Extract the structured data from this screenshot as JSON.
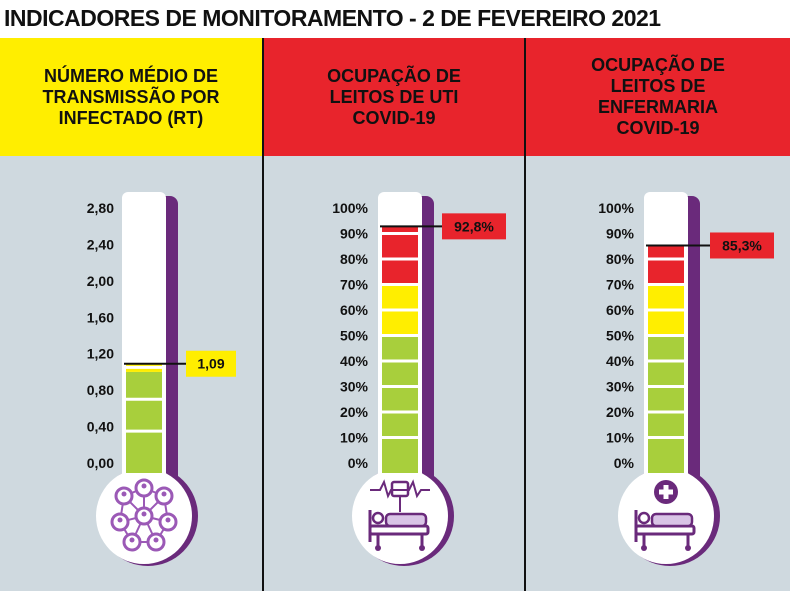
{
  "title": "INDICADORES DE MONITORAMENTO - 2 DE FEVEREIRO 2021",
  "colors": {
    "panel_bg": "#cfd9df",
    "header_yellow": "#ffee00",
    "header_red": "#e8242c",
    "green": "#a8cf3c",
    "yellow": "#ffee00",
    "red": "#e8242c",
    "purple": "#6a2a7b",
    "icon_purple": "#9b59b6"
  },
  "panels": [
    {
      "title": "NÚMERO MÉDIO DE\nTRANSMISSÃO POR\nINFECTADO (RT)",
      "header_color": "#ffee00",
      "icon": "people-network-icon",
      "value_label": "1,09"
    },
    {
      "title": "OCUPAÇÃO DE\nLEITOS DE UTI\nCOVID-19",
      "header_color": "#e8242c",
      "icon": "icu-bed-monitor-icon",
      "value_label": "92,8%"
    },
    {
      "title": "OCUPAÇÃO DE\nLEITOS DE\nENFERMARIA\nCOVID-19",
      "header_color": "#e8242c",
      "icon": "ward-bed-cross-icon",
      "value_label": "85,3%"
    }
  ],
  "chart_data": [
    {
      "type": "gauge",
      "title": "NÚMERO MÉDIO DE TRANSMISSÃO POR INFECTADO (RT)",
      "tick_labels": [
        "2,80",
        "2,40",
        "2,00",
        "1,60",
        "1,20",
        "0,80",
        "0,40",
        "0,00"
      ],
      "ylim": [
        0,
        2.8
      ],
      "value": 1.09,
      "value_label": "1,09",
      "color_zones": [
        {
          "from": 0,
          "to": 1.0,
          "color": "#a8cf3c"
        },
        {
          "from": 1.0,
          "to": 1.09,
          "color": "#ffee00"
        }
      ]
    },
    {
      "type": "gauge",
      "title": "OCUPAÇÃO DE LEITOS DE UTI COVID-19",
      "tick_labels": [
        "100%",
        "90%",
        "80%",
        "70%",
        "60%",
        "50%",
        "40%",
        "30%",
        "20%",
        "10%",
        "0%"
      ],
      "ylim": [
        0,
        100
      ],
      "value": 92.8,
      "value_label": "92,8%",
      "color_zones": [
        {
          "from": 0,
          "to": 50,
          "color": "#a8cf3c"
        },
        {
          "from": 50,
          "to": 70,
          "color": "#ffee00"
        },
        {
          "from": 70,
          "to": 92.8,
          "color": "#e8242c"
        }
      ]
    },
    {
      "type": "gauge",
      "title": "OCUPAÇÃO DE LEITOS DE ENFERMARIA COVID-19",
      "tick_labels": [
        "100%",
        "90%",
        "80%",
        "70%",
        "60%",
        "50%",
        "40%",
        "30%",
        "20%",
        "10%",
        "0%"
      ],
      "ylim": [
        0,
        100
      ],
      "value": 85.3,
      "value_label": "85,3%",
      "color_zones": [
        {
          "from": 0,
          "to": 50,
          "color": "#a8cf3c"
        },
        {
          "from": 50,
          "to": 70,
          "color": "#ffee00"
        },
        {
          "from": 70,
          "to": 85.3,
          "color": "#e8242c"
        }
      ]
    }
  ]
}
